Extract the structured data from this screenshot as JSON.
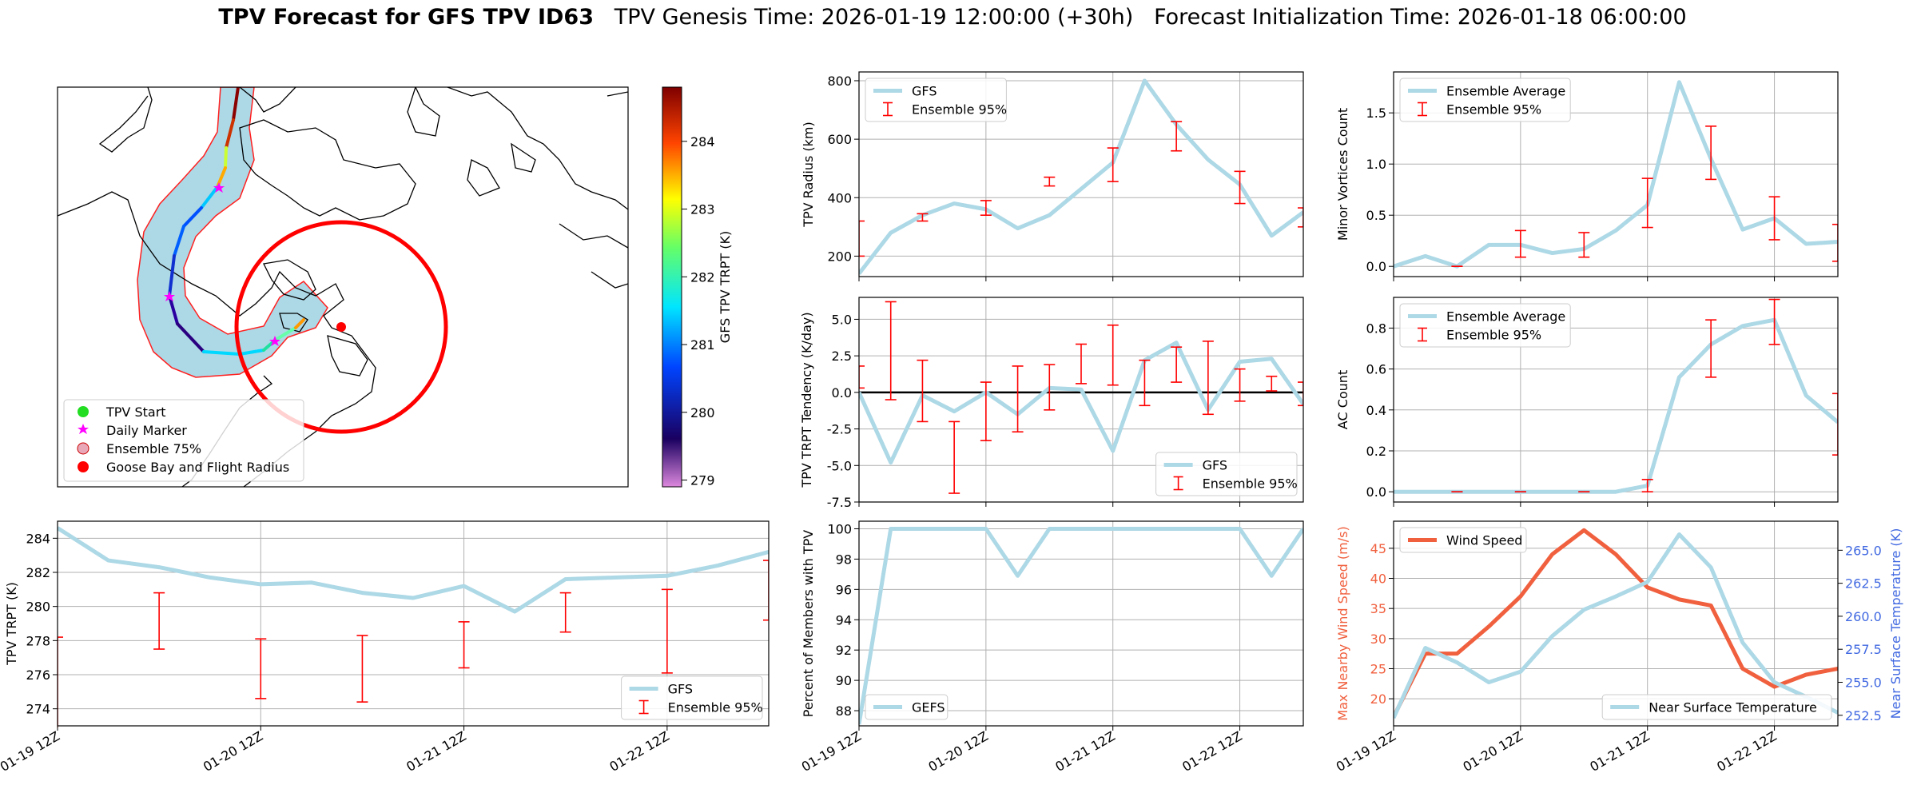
{
  "header": {
    "title_bold": "TPV Forecast for GFS TPV ID63",
    "genesis": "TPV Genesis Time: 2026-01-19 12:00:00 (+30h)",
    "init": "Forecast Initialization Time: 2026-01-18 06:00:00"
  },
  "colors": {
    "gfs": "#add8e6",
    "ens": "#ff0000",
    "wind": "#f0603f",
    "temp_axis": "#4169e1",
    "zero": "#000000"
  },
  "chart_data": [
    {
      "id": "map",
      "type": "map",
      "colorbar": {
        "label": "GFS TPV TRPT (K)",
        "ticks": [
          279,
          280,
          281,
          282,
          283,
          284
        ],
        "range": [
          278.9,
          284.8
        ]
      },
      "legend": [
        "TPV Start",
        "Daily Marker",
        "Ensemble 75%",
        "Goose Bay and Flight Radius"
      ]
    },
    {
      "id": "trpt",
      "type": "line",
      "ylabel": "TPV TRPT (K)",
      "ylim": [
        273,
        285
      ],
      "yticks": [
        274,
        276,
        278,
        280,
        282,
        284
      ],
      "xticks": [
        "01-19 12Z",
        "01-20 12Z",
        "01-21 12Z",
        "01-22 12Z"
      ],
      "x": [
        0,
        1,
        2,
        3,
        4,
        5,
        6,
        7,
        8,
        9,
        10,
        11,
        12,
        13,
        14
      ],
      "series": [
        {
          "name": "GFS",
          "values": [
            284.6,
            282.7,
            282.3,
            281.7,
            281.3,
            281.4,
            280.8,
            280.5,
            281.2,
            279.7,
            281.6,
            281.7,
            281.8,
            282.4,
            283.2
          ]
        }
      ],
      "errorbars": {
        "name": "Ensemble 95%",
        "x": [
          0,
          2,
          4,
          6,
          8,
          10,
          12,
          14
        ],
        "low": [
          272.8,
          277.5,
          274.6,
          274.4,
          276.4,
          278.5,
          276.1,
          279.2
        ],
        "high": [
          278.2,
          280.8,
          278.1,
          278.3,
          279.1,
          280.8,
          281.0,
          282.7
        ]
      }
    },
    {
      "id": "radius",
      "type": "line",
      "ylabel": "TPV Radius (km)",
      "ylim": [
        130,
        830
      ],
      "yticks": [
        200,
        400,
        600,
        800
      ],
      "x": [
        0,
        1,
        2,
        3,
        4,
        5,
        6,
        7,
        8,
        9,
        10,
        11,
        12,
        13,
        14
      ],
      "series": [
        {
          "name": "GFS",
          "values": [
            140,
            280,
            340,
            380,
            360,
            295,
            340,
            430,
            520,
            800,
            650,
            530,
            445,
            270,
            350
          ]
        }
      ],
      "errorbars": {
        "name": "Ensemble 95%",
        "x": [
          0,
          2,
          4,
          6,
          8,
          10,
          12,
          14
        ],
        "low": [
          200,
          320,
          340,
          440,
          455,
          560,
          380,
          300
        ],
        "high": [
          320,
          345,
          390,
          470,
          570,
          660,
          490,
          365
        ]
      }
    },
    {
      "id": "tendency",
      "type": "line",
      "ylabel": "TPV TRPT Tendency (K/day)",
      "ylim": [
        -7.5,
        6.5
      ],
      "yticks": [
        -7.5,
        -5.0,
        -2.5,
        0.0,
        2.5,
        5.0
      ],
      "x": [
        0,
        1,
        2,
        3,
        4,
        5,
        6,
        7,
        8,
        9,
        10,
        11,
        12,
        13,
        14
      ],
      "series": [
        {
          "name": "GFS",
          "values": [
            0.0,
            -4.8,
            -0.2,
            -1.3,
            0.0,
            -1.5,
            0.3,
            0.2,
            -4.0,
            2.2,
            3.4,
            -1.2,
            2.1,
            2.3,
            -0.8
          ]
        }
      ],
      "errorbars": {
        "name": "Ensemble 95%",
        "x": [
          0,
          1,
          2,
          3,
          4,
          5,
          6,
          7,
          8,
          9,
          10,
          11,
          12,
          13,
          14
        ],
        "low": [
          0.3,
          -0.5,
          -2.0,
          -6.9,
          -3.3,
          -2.7,
          -1.2,
          0.6,
          0.5,
          -0.9,
          0.7,
          -1.5,
          -0.6,
          0.1,
          -0.9
        ],
        "high": [
          1.8,
          6.2,
          2.2,
          -2.0,
          0.7,
          1.8,
          1.9,
          3.3,
          4.6,
          2.2,
          3.1,
          3.5,
          1.6,
          1.1,
          0.7
        ]
      }
    },
    {
      "id": "members",
      "type": "line",
      "ylabel": "Percent of Members with TPV",
      "ylim": [
        87,
        100.5
      ],
      "yticks": [
        88,
        90,
        92,
        94,
        96,
        98,
        100
      ],
      "xticks": [
        "01-19 12Z",
        "01-20 12Z",
        "01-21 12Z",
        "01-22 12Z"
      ],
      "x": [
        0,
        1,
        2,
        3,
        4,
        5,
        6,
        7,
        8,
        9,
        10,
        11,
        12,
        13,
        14
      ],
      "series": [
        {
          "name": "GEFS",
          "values": [
            87.1,
            100,
            100,
            100,
            100,
            96.9,
            100,
            100,
            100,
            100,
            100,
            100,
            100,
            96.9,
            100
          ]
        }
      ]
    },
    {
      "id": "minor",
      "type": "line",
      "ylabel": "Minor Vortices Count",
      "ylim": [
        -0.1,
        1.9
      ],
      "yticks": [
        0.0,
        0.5,
        1.0,
        1.5
      ],
      "x": [
        0,
        1,
        2,
        3,
        4,
        5,
        6,
        7,
        8,
        9,
        10,
        11,
        12,
        13,
        14
      ],
      "series": [
        {
          "name": "Ensemble Average",
          "values": [
            0.0,
            0.1,
            0.0,
            0.21,
            0.21,
            0.13,
            0.17,
            0.35,
            0.6,
            1.8,
            1.05,
            0.36,
            0.47,
            0.22,
            0.24
          ]
        }
      ],
      "errorbars": {
        "name": "Ensemble 95%",
        "x": [
          2,
          4,
          6,
          8,
          10,
          12,
          14
        ],
        "low": [
          0.0,
          0.09,
          0.09,
          0.38,
          0.85,
          0.26,
          0.05
        ],
        "high": [
          0.0,
          0.35,
          0.33,
          0.86,
          1.37,
          0.68,
          0.41
        ]
      }
    },
    {
      "id": "ac",
      "type": "line",
      "ylabel": "AC Count",
      "ylim": [
        -0.05,
        0.95
      ],
      "yticks": [
        0.0,
        0.2,
        0.4,
        0.6,
        0.8
      ],
      "x": [
        0,
        1,
        2,
        3,
        4,
        5,
        6,
        7,
        8,
        9,
        10,
        11,
        12,
        13,
        14
      ],
      "series": [
        {
          "name": "Ensemble Average",
          "values": [
            0.0,
            0.0,
            0.0,
            0.0,
            0.0,
            0.0,
            0.0,
            0.0,
            0.03,
            0.56,
            0.72,
            0.81,
            0.84,
            0.47,
            0.34
          ]
        }
      ],
      "errorbars": {
        "name": "Ensemble 95%",
        "x": [
          2,
          4,
          6,
          8,
          10,
          12,
          14
        ],
        "low": [
          0.0,
          0.0,
          0.0,
          0.0,
          0.56,
          0.72,
          0.18
        ],
        "high": [
          0.0,
          0.0,
          0.0,
          0.06,
          0.84,
          0.94,
          0.48
        ]
      }
    },
    {
      "id": "wind",
      "type": "line",
      "ylabel": "Max Nearby Wind Speed (m/s)",
      "ylabel2": "Near Surface Temperature (K)",
      "ylim": [
        15.5,
        49.5
      ],
      "ylim2": [
        251.7,
        267.2
      ],
      "yticks": [
        20,
        25,
        30,
        35,
        40,
        45
      ],
      "yticks2": [
        252.5,
        255.0,
        257.5,
        260.0,
        262.5,
        265.0
      ],
      "xticks": [
        "01-19 12Z",
        "01-20 12Z",
        "01-21 12Z",
        "01-22 12Z"
      ],
      "x": [
        0,
        1,
        2,
        3,
        4,
        5,
        6,
        7,
        8,
        9,
        10,
        11,
        12,
        13,
        14
      ],
      "series": [
        {
          "name": "Wind Speed",
          "axis": "left",
          "values": [
            17,
            27.5,
            27.5,
            32,
            37,
            44,
            48,
            44,
            38.5,
            36.5,
            35.5,
            25,
            22,
            24,
            25
          ]
        },
        {
          "name": "Near Surface Temperature",
          "axis": "right",
          "values": [
            252.3,
            257.6,
            256.5,
            255.0,
            255.8,
            258.5,
            260.5,
            261.5,
            262.6,
            266.2,
            263.7,
            258.0,
            255.0,
            253.9,
            252.7
          ]
        }
      ]
    }
  ]
}
